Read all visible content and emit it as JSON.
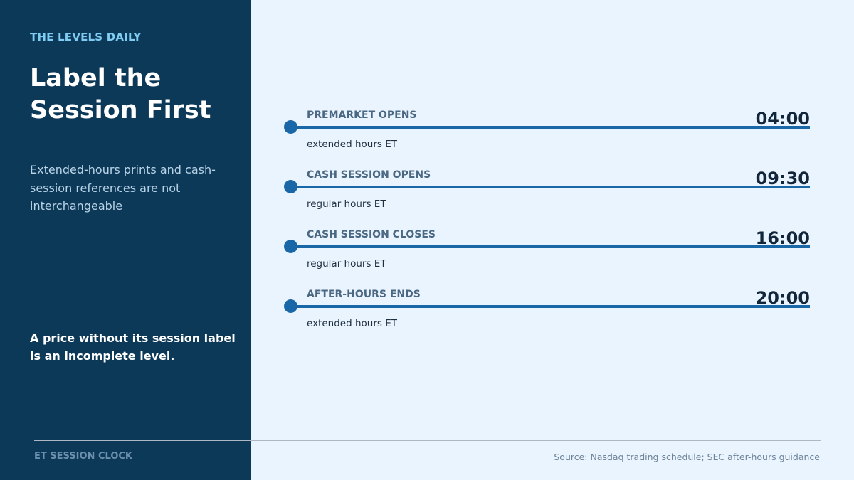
{
  "sidebar": {
    "brand": "THE LEVELS DAILY",
    "title": "Label the Session First",
    "description": "Extended-hours prints and cash-session references are not interchangeable",
    "takeaway": "A price without its session label is an incomplete level."
  },
  "events": [
    {
      "label": "PREMARKET OPENS",
      "time": "04:00",
      "sub": "extended hours ET"
    },
    {
      "label": "CASH SESSION OPENS",
      "time": "09:30",
      "sub": "regular hours ET"
    },
    {
      "label": "CASH SESSION CLOSES",
      "time": "16:00",
      "sub": "regular hours ET"
    },
    {
      "label": "AFTER-HOURS ENDS",
      "time": "20:00",
      "sub": "extended hours ET"
    }
  ],
  "footer": {
    "left": "ET SESSION CLOCK",
    "source": "Source: Nasdaq trading schedule; SEC after-hours guidance"
  },
  "colors": {
    "sidebar_bg": "#0d3958",
    "page_bg": "#eaf4fe",
    "accent": "#1a67a8",
    "brand": "#7fcdf4"
  }
}
